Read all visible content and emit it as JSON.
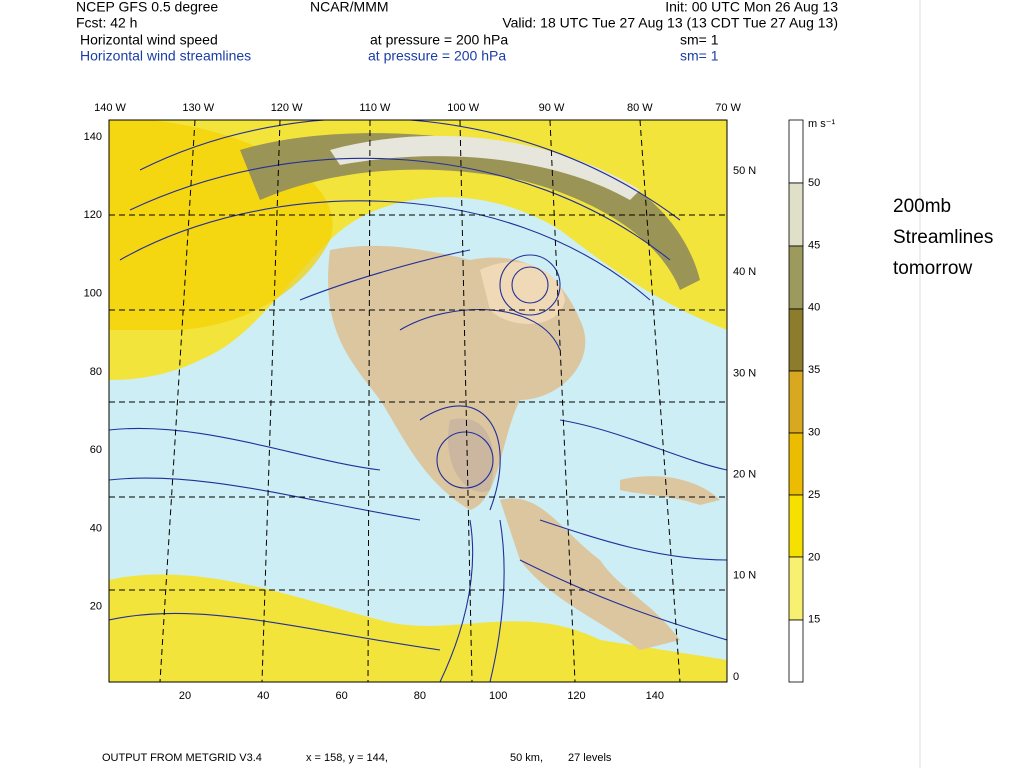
{
  "header": {
    "line1": [
      "NCEP GFS  0.5 degree",
      "NCAR/MMM",
      "Init: 00 UTC Mon 26 Aug 13"
    ],
    "line2": [
      "Fcst:   42 h",
      "Valid: 18 UTC Tue 27 Aug 13 (13 CDT Tue 27 Aug 13)"
    ],
    "field1": [
      "Horizontal wind speed",
      "at pressure =  200 hPa",
      "sm= 1"
    ],
    "field2": [
      "Horizontal wind streamlines",
      "at pressure =  200 hPa",
      "sm= 1"
    ]
  },
  "map": {
    "top_labels": [
      "140 W",
      "130 W",
      "120 W",
      "110 W",
      "100 W",
      "90 W",
      "80 W",
      "70 W"
    ],
    "left_labels": [
      "140",
      "120",
      "100",
      "80",
      "60",
      "40",
      "20"
    ],
    "bottom_labels": [
      "20",
      "40",
      "60",
      "80",
      "100",
      "120",
      "140"
    ],
    "right_labels": [
      "50 N",
      "40 N",
      "30 N",
      "20 N",
      "10 N",
      "0"
    ]
  },
  "colorbar": {
    "unit": "m s⁻¹",
    "labels": [
      "50",
      "45",
      "40",
      "35",
      "30",
      "25",
      "20",
      "15"
    ]
  },
  "footer": [
    "OUTPUT FROM METGRID V3.4",
    "x =   158,  y =   144,",
    "50 km,",
    "27 levels"
  ],
  "note": [
    "200mb",
    "Streamlines",
    "tomorrow"
  ]
}
